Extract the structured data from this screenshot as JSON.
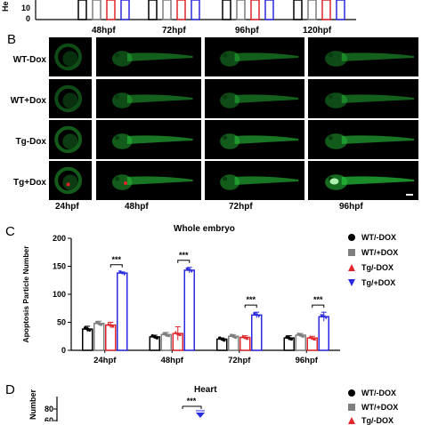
{
  "panel_a": {
    "timepoints": [
      "48hpf",
      "72hpf",
      "96hpf",
      "120hpf"
    ],
    "ytick": "10",
    "ytick0": "0",
    "ylabel_fragment": "He"
  },
  "panel_b": {
    "letter": "B",
    "rows": [
      "WT-Dox",
      "WT+Dox",
      "Tg-Dox",
      "Tg+Dox"
    ],
    "timepoints": [
      "24hpf",
      "48hpf",
      "72hpf",
      "96hpf"
    ]
  },
  "panel_c": {
    "letter": "C",
    "legend": [
      "WT/-DOX",
      "WT/+DOX",
      "Tg/-DOX",
      "Tg/+DOX"
    ],
    "significance": "***"
  },
  "panel_d": {
    "letter": "D",
    "legend": [
      "WT/-DOX",
      "WT/+DOX",
      "Tg/-DOX"
    ],
    "significance": "***",
    "yticks": [
      "80",
      "60"
    ]
  },
  "colors": {
    "wt_minus": "#000000",
    "wt_plus": "#7f7f7f",
    "tg_minus": "#e0262b",
    "tg_plus": "#2a2adf",
    "embryo_green": "#27c43a"
  },
  "chart_data": [
    {
      "type": "bar",
      "title": "Whole embryo",
      "xlabel": "",
      "ylabel": "Apoptosis Particle Number",
      "categories": [
        "24hpf",
        "48hpf",
        "72hpf",
        "96hpf"
      ],
      "ylim": [
        0,
        200
      ],
      "yticks": [
        0,
        50,
        100,
        150,
        200
      ],
      "legend_position": "right",
      "series": [
        {
          "name": "WT/-DOX",
          "values": [
            38,
            24,
            20,
            22
          ],
          "errors": [
            5,
            3,
            2,
            4
          ]
        },
        {
          "name": "WT/+DOX",
          "values": [
            48,
            28,
            25,
            27
          ],
          "errors": [
            4,
            4,
            3,
            3
          ]
        },
        {
          "name": "Tg/-DOX",
          "values": [
            45,
            30,
            23,
            22
          ],
          "errors": [
            5,
            12,
            3,
            3
          ]
        },
        {
          "name": "Tg/+DOX",
          "values": [
            138,
            143,
            63,
            60
          ],
          "errors": [
            2,
            5,
            5,
            8
          ]
        }
      ]
    },
    {
      "type": "bar",
      "title": "Heart",
      "xlabel": "",
      "ylabel": "Number",
      "categories": [],
      "ylim": [
        60,
        85
      ],
      "yticks": [
        60,
        80
      ],
      "legend_position": "right",
      "series": []
    }
  ]
}
